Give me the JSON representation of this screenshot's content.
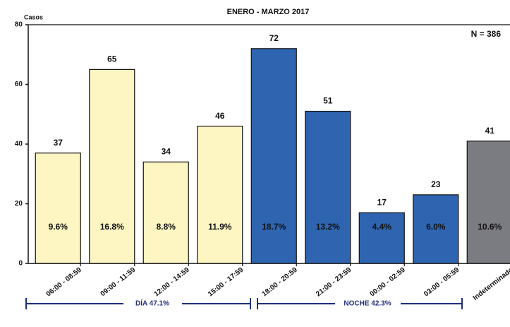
{
  "chart_data": {
    "type": "bar",
    "title": "ENERO - MARZO 2017",
    "y_label": "Casos",
    "annotation": "N = 386",
    "categories": [
      "06:00 - 08:59",
      "09:00 - 11:59",
      "12:00 - 14:59",
      "15:00 - 17:59",
      "18:00 - 20:59",
      "21:00 - 23:59",
      "00:00 - 02:59",
      "03:00 - 05:59",
      "Indeterminado"
    ],
    "values": [
      37,
      65,
      34,
      46,
      72,
      51,
      17,
      23,
      41
    ],
    "percentages": [
      "9.6%",
      "16.8%",
      "8.8%",
      "11.9%",
      "18.7%",
      "13.2%",
      "4.4%",
      "6.0%",
      "10.6%"
    ],
    "colors": [
      "#fdf5c2",
      "#fdf5c2",
      "#fdf5c2",
      "#fdf5c2",
      "#2f65b0",
      "#2f65b0",
      "#2f65b0",
      "#2f65b0",
      "#7b7b82"
    ],
    "groups": [
      "DÍA 47.1%",
      "NOCHE 42.3%"
    ],
    "ylim": [
      0,
      80
    ],
    "yticks": [
      0,
      20,
      40,
      60,
      80
    ]
  }
}
